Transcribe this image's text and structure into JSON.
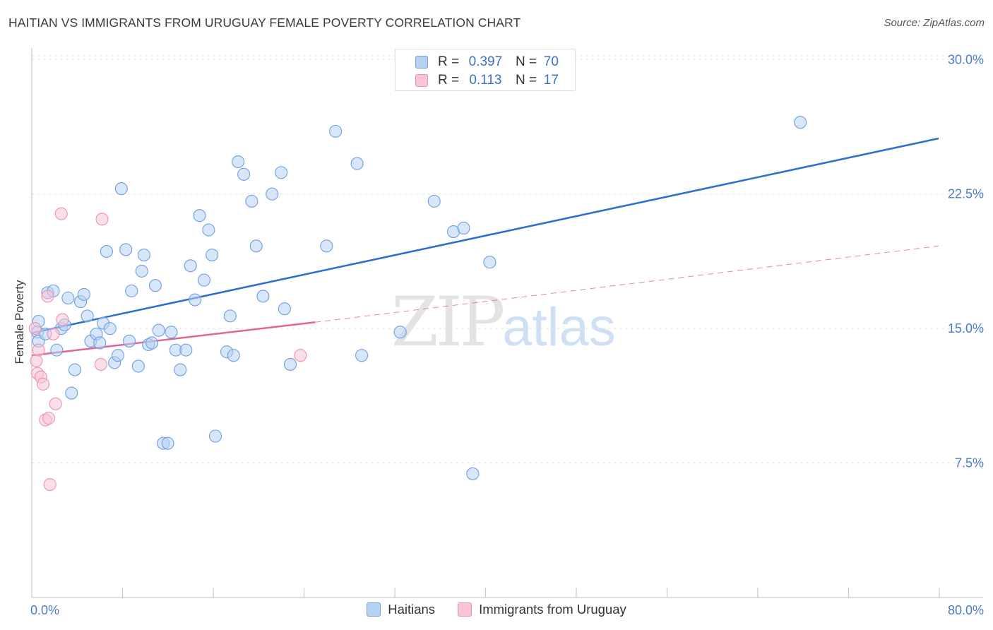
{
  "title": "HAITIAN VS IMMIGRANTS FROM URUGUAY FEMALE POVERTY CORRELATION CHART",
  "source": "Source: ZipAtlas.com",
  "watermark": {
    "zip": "ZIP",
    "atlas": "atlas"
  },
  "legend": {
    "rows": [
      {
        "r_key": "R =",
        "r_val": "0.397",
        "n_key": "N =",
        "n_val": "70"
      },
      {
        "r_key": "R =",
        "r_val": "0.113",
        "n_key": "N =",
        "n_val": "17"
      }
    ]
  },
  "colors": {
    "blue_fill": "#b7d1f3",
    "blue_stroke": "#6f9fe0",
    "blue_line": "#2b6fd0",
    "pink_fill": "#f8c5d6",
    "pink_stroke": "#ea93b1",
    "pink_line": "#e0659a",
    "grid": "#e3e3e3",
    "axis": "#c9c9c9"
  },
  "chart_data": {
    "type": "scatter",
    "title": "HAITIAN VS IMMIGRANTS FROM URUGUAY FEMALE POVERTY CORRELATION CHART",
    "xlabel": "",
    "ylabel": "Female Poverty",
    "xlim": [
      0,
      80
    ],
    "ylim": [
      0,
      31.5
    ],
    "x_tick_labels": [
      "0.0%",
      "80.0%"
    ],
    "y_ticks": [
      7.5,
      15.0,
      22.5,
      30.0
    ],
    "y_tick_labels": [
      "7.5%",
      "15.0%",
      "22.5%",
      "30.0%"
    ],
    "series": [
      {
        "name": "Haitians",
        "color": "#6f9fe0",
        "points": [
          [
            0.6,
            15.4
          ],
          [
            0.5,
            14.8
          ],
          [
            0.6,
            14.3
          ],
          [
            1.2,
            14.7
          ],
          [
            1.4,
            17.0
          ],
          [
            1.9,
            17.1
          ],
          [
            2.2,
            13.8
          ],
          [
            2.6,
            15.0
          ],
          [
            2.9,
            15.2
          ],
          [
            3.2,
            16.7
          ],
          [
            3.5,
            11.4
          ],
          [
            3.8,
            12.7
          ],
          [
            4.3,
            16.5
          ],
          [
            4.6,
            16.9
          ],
          [
            4.9,
            15.7
          ],
          [
            5.2,
            14.3
          ],
          [
            5.7,
            14.7
          ],
          [
            6.0,
            14.2
          ],
          [
            6.3,
            15.3
          ],
          [
            6.6,
            19.3
          ],
          [
            6.9,
            15.0
          ],
          [
            7.3,
            13.1
          ],
          [
            7.6,
            13.5
          ],
          [
            7.9,
            22.8
          ],
          [
            8.3,
            19.4
          ],
          [
            8.6,
            14.3
          ],
          [
            8.8,
            17.1
          ],
          [
            9.4,
            12.9
          ],
          [
            9.7,
            18.2
          ],
          [
            9.9,
            19.1
          ],
          [
            10.3,
            14.1
          ],
          [
            10.6,
            14.2
          ],
          [
            10.9,
            17.4
          ],
          [
            11.2,
            14.9
          ],
          [
            11.6,
            8.6
          ],
          [
            12.0,
            8.6
          ],
          [
            12.3,
            14.8
          ],
          [
            12.7,
            13.8
          ],
          [
            13.1,
            12.7
          ],
          [
            13.6,
            13.8
          ],
          [
            14.0,
            18.5
          ],
          [
            14.4,
            16.6
          ],
          [
            14.8,
            21.3
          ],
          [
            15.2,
            17.7
          ],
          [
            15.6,
            20.5
          ],
          [
            15.9,
            19.1
          ],
          [
            16.2,
            9.0
          ],
          [
            17.2,
            13.7
          ],
          [
            17.5,
            15.7
          ],
          [
            17.8,
            13.5
          ],
          [
            18.2,
            24.3
          ],
          [
            18.7,
            23.6
          ],
          [
            19.4,
            22.1
          ],
          [
            19.8,
            19.6
          ],
          [
            20.4,
            16.8
          ],
          [
            21.2,
            22.5
          ],
          [
            22.0,
            23.7
          ],
          [
            22.3,
            16.1
          ],
          [
            22.8,
            13.0
          ],
          [
            26.0,
            19.6
          ],
          [
            26.8,
            26.0
          ],
          [
            28.7,
            24.2
          ],
          [
            29.1,
            13.5
          ],
          [
            32.5,
            14.8
          ],
          [
            35.5,
            22.1
          ],
          [
            37.2,
            20.4
          ],
          [
            38.1,
            20.6
          ],
          [
            38.9,
            6.9
          ],
          [
            40.4,
            18.7
          ],
          [
            67.8,
            26.5
          ]
        ]
      },
      {
        "name": "Immigrants from Uruguay",
        "color": "#ea93b1",
        "points": [
          [
            0.3,
            15.0
          ],
          [
            0.4,
            13.2
          ],
          [
            0.5,
            12.5
          ],
          [
            0.6,
            13.8
          ],
          [
            0.8,
            12.3
          ],
          [
            1.0,
            11.9
          ],
          [
            1.2,
            9.9
          ],
          [
            1.4,
            16.8
          ],
          [
            1.5,
            10.0
          ],
          [
            1.6,
            6.3
          ],
          [
            1.9,
            14.7
          ],
          [
            2.1,
            10.8
          ],
          [
            2.7,
            15.5
          ],
          [
            2.6,
            21.4
          ],
          [
            6.1,
            13.0
          ],
          [
            6.2,
            21.1
          ],
          [
            23.7,
            13.5
          ]
        ]
      }
    ],
    "trendlines": [
      {
        "series": "Haitians",
        "x": [
          0,
          80
        ],
        "y": [
          14.75,
          25.6
        ],
        "style": "solid"
      },
      {
        "series": "Immigrants from Uruguay",
        "x": [
          0,
          25
        ],
        "y": [
          13.5,
          15.35
        ],
        "style": "solid"
      },
      {
        "series": "Immigrants from Uruguay",
        "x": [
          25,
          80
        ],
        "y": [
          15.35,
          19.6
        ],
        "style": "dashed"
      }
    ]
  }
}
